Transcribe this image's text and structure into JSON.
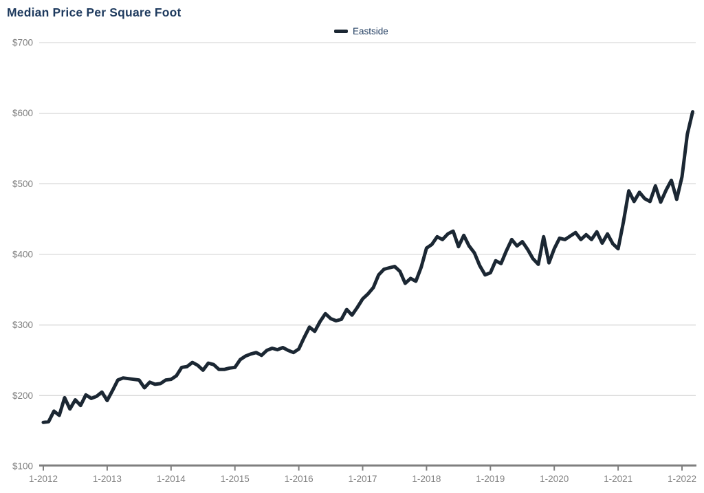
{
  "chart": {
    "title": "Median Price Per Square Foot",
    "legend": [
      {
        "label": "Eastside"
      }
    ]
  },
  "chart_data": {
    "type": "line",
    "title": "Median Price Per Square Foot",
    "x_start": "2012-01",
    "x_frequency": "monthly",
    "x_tick_labels": [
      "1-2012",
      "1-2013",
      "1-2014",
      "1-2015",
      "1-2016",
      "1-2017",
      "1-2018",
      "1-2019",
      "1-2020",
      "1-2021",
      "1-2022"
    ],
    "y_ticks": [
      100,
      200,
      300,
      400,
      500,
      600,
      700
    ],
    "y_tick_labels": [
      "$100",
      "$200",
      "$300",
      "$400",
      "$500",
      "$600",
      "$700"
    ],
    "ylim": [
      100,
      700
    ],
    "grid": "horizontal",
    "legend_position": "top-center",
    "series": [
      {
        "name": "Eastside",
        "color": "#1b2733",
        "values": [
          162,
          163,
          178,
          172,
          197,
          181,
          194,
          186,
          201,
          196,
          199,
          205,
          193,
          207,
          222,
          225,
          224,
          223,
          222,
          211,
          219,
          216,
          217,
          222,
          223,
          228,
          240,
          241,
          247,
          243,
          236,
          246,
          244,
          237,
          237,
          239,
          240,
          251,
          256,
          259,
          261,
          257,
          264,
          267,
          265,
          268,
          264,
          261,
          266,
          282,
          297,
          291,
          305,
          316,
          309,
          306,
          308,
          322,
          314,
          325,
          337,
          344,
          353,
          371,
          379,
          381,
          383,
          376,
          359,
          366,
          362,
          382,
          409,
          414,
          425,
          421,
          429,
          433,
          411,
          427,
          412,
          402,
          384,
          371,
          374,
          391,
          387,
          405,
          421,
          412,
          418,
          407,
          394,
          386,
          425,
          388,
          408,
          423,
          421,
          426,
          431,
          421,
          428,
          421,
          432,
          416,
          429,
          415,
          408,
          446,
          490,
          475,
          488,
          479,
          475,
          497,
          474,
          491,
          505,
          478,
          510,
          570,
          602
        ]
      }
    ],
    "colors": {
      "title": "#1e3a5e",
      "legend_text": "#1e3a5e",
      "line": "#1b2733",
      "gridline": "#d9d9d9",
      "axis_line": "#7f7f7f",
      "axis_labels": "#7f7f7f",
      "background": "#ffffff"
    }
  }
}
